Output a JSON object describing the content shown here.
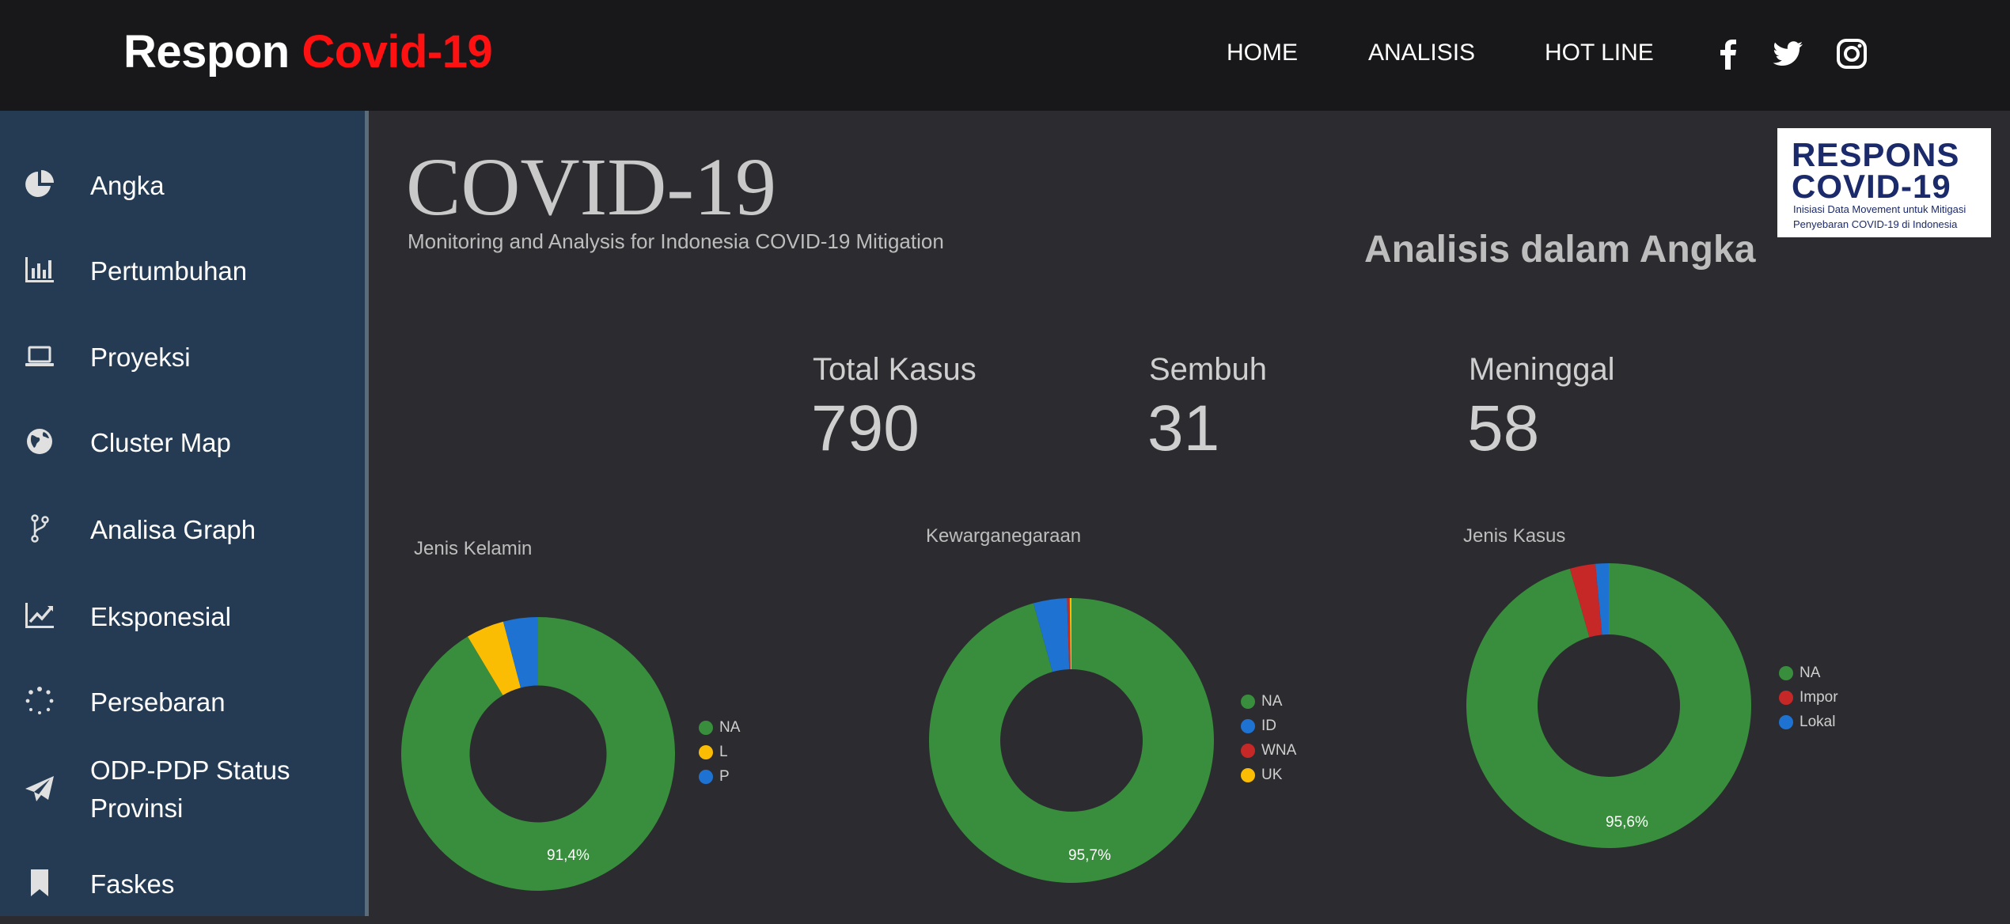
{
  "header": {
    "brand_white": "Respon",
    "brand_red": "Covid-19",
    "nav": [
      {
        "label": "HOME"
      },
      {
        "label": "ANALISIS"
      },
      {
        "label": "HOT LINE"
      }
    ],
    "social_icons": [
      "facebook-icon",
      "twitter-icon",
      "instagram-icon"
    ]
  },
  "sidebar": {
    "items": [
      {
        "label": "Angka",
        "icon": "pie-chart-icon"
      },
      {
        "label": "Pertumbuhan",
        "icon": "bar-chart-icon"
      },
      {
        "label": "Proyeksi",
        "icon": "laptop-icon"
      },
      {
        "label": "Cluster Map",
        "icon": "globe-icon"
      },
      {
        "label": "Analisa Graph",
        "icon": "branch-icon"
      },
      {
        "label": "Eksponesial",
        "icon": "line-chart-icon"
      },
      {
        "label": "Persebaran",
        "icon": "spinner-icon"
      },
      {
        "label": "ODP-PDP Status",
        "label2": "Provinsi",
        "icon": "paper-plane-icon"
      },
      {
        "label": "Faskes",
        "icon": "bookmark-icon"
      }
    ]
  },
  "main": {
    "title": "COVID-19",
    "subtitle": "Monitoring and Analysis for Indonesia COVID-19 Mitigation",
    "section_heading": "Analisis dalam Angka",
    "logo": {
      "line1": "RESPONS",
      "line2": "COVID-19",
      "line3": "Inisiasi Data Movement untuk Mitigasi",
      "line4": "Penyebaran COVID-19 di Indonesia"
    },
    "stats": [
      {
        "label": "Total Kasus",
        "value": "790"
      },
      {
        "label": "Sembuh",
        "value": "31"
      },
      {
        "label": "Meninggal",
        "value": "58"
      }
    ]
  },
  "colors": {
    "green": "#388e3c",
    "yellow": "#fbbc04",
    "blue": "#1e73d2",
    "red": "#c62828",
    "orange": "#e8a33a"
  },
  "chart_data": [
    {
      "type": "pie",
      "title": "Jenis Kelamin",
      "categories": [
        "NA",
        "L",
        "P"
      ],
      "values": [
        91.4,
        4.5,
        4.1
      ],
      "colors": [
        "#388e3c",
        "#fbbc04",
        "#1e73d2"
      ],
      "data_label": "91,4%"
    },
    {
      "type": "pie",
      "title": "Kewarganegaraan",
      "categories": [
        "NA",
        "ID",
        "WNA",
        "UK"
      ],
      "values": [
        95.7,
        3.8,
        0.3,
        0.2
      ],
      "colors": [
        "#388e3c",
        "#1e73d2",
        "#c62828",
        "#fbbc04"
      ],
      "data_label": "95,7%"
    },
    {
      "type": "pie",
      "title": "Jenis Kasus",
      "categories": [
        "NA",
        "Impor",
        "Lokal"
      ],
      "values": [
        95.6,
        2.9,
        1.5
      ],
      "colors": [
        "#388e3c",
        "#c62828",
        "#1e73d2"
      ],
      "data_label": "95,6%"
    }
  ]
}
